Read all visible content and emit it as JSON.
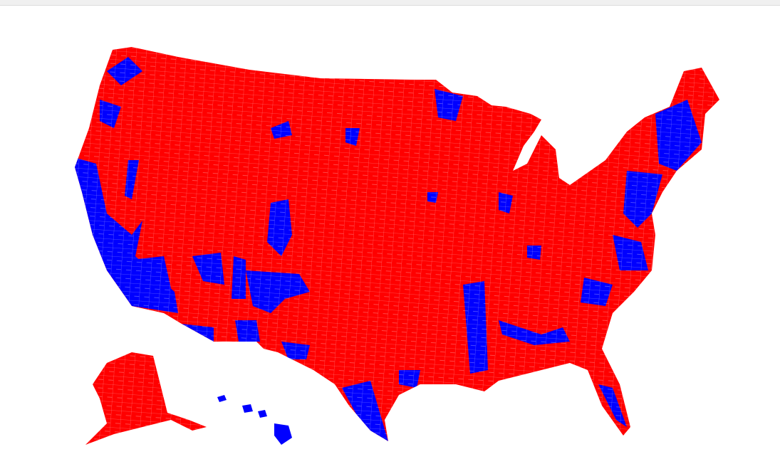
{
  "map": {
    "colors": [
      "#ff0000",
      "#0000ff"
    ]
  }
}
